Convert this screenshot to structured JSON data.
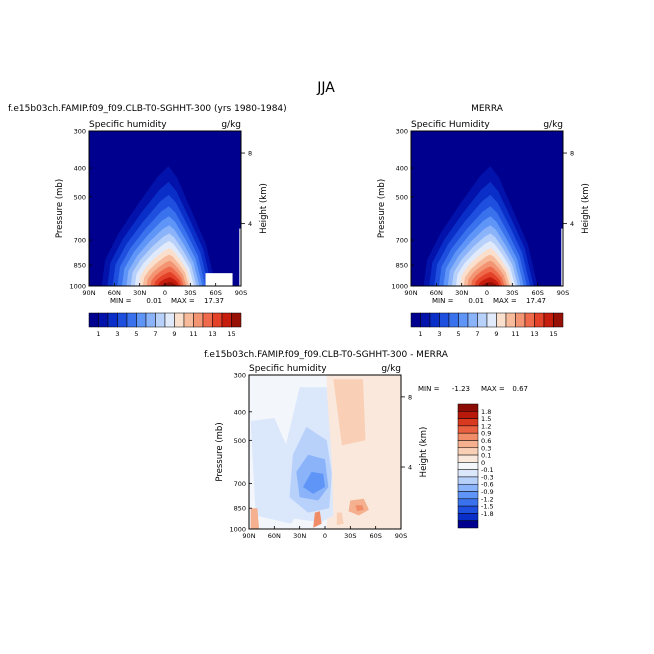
{
  "figure": {
    "title": "JJA"
  },
  "colors": {
    "model_levels": [
      "#00008e",
      "#0212aa",
      "#0a2fc8",
      "#1f4fde",
      "#3a72ee",
      "#5f95f6",
      "#8ab3fa",
      "#b8d1fb",
      "#e0eafb",
      "#fbdfcd",
      "#f7bb9c",
      "#f39473",
      "#ee6a4a",
      "#e34128",
      "#c61d0e",
      "#971005"
    ],
    "diff_levels": [
      "#00008e",
      "#0a2fc8",
      "#1f4fde",
      "#3a72ee",
      "#5f95f6",
      "#8ab3fa",
      "#b8d1fb",
      "#dbe7fb",
      "#f3f6fb",
      "#fbe8dc",
      "#f9d0b6",
      "#f5b08f",
      "#f08c68",
      "#e96140",
      "#d8391f",
      "#b8190b",
      "#8a0c04"
    ]
  },
  "panels": {
    "model": {
      "case_title": "f.e15b03ch.FAMIP.f09_f09.CLB-T0-SGHHT-300 (yrs 1980-1984)",
      "variable": "Specific humidity",
      "units": "g/kg",
      "min_label": "MIN =",
      "min_value": "0.01",
      "max_label": "MAX =",
      "max_value": "17.37"
    },
    "obs": {
      "case_title": "MERRA",
      "variable": "Specific Humidity",
      "units": "g/kg",
      "min_label": "MIN =",
      "min_value": "0.01",
      "max_label": "MAX =",
      "max_value": "17.47"
    },
    "diff": {
      "case_title": "f.e15b03ch.FAMIP.f09_f09.CLB-T0-SGHHT-300 - MERRA",
      "variable": "Specific humidity",
      "units": "g/kg",
      "min_label": "MIN =",
      "min_value": "-1.23",
      "max_label": "MAX =",
      "max_value": "0.67"
    }
  },
  "chart_data": [
    {
      "type": "heatmap",
      "title": "f.e15b03ch.FAMIP.f09_f09.CLB-T0-SGHHT-300 (yrs 1980-1984)",
      "subtitle": "Specific humidity",
      "units": "g/kg",
      "xlabel": "",
      "ylabel": "Pressure (mb)",
      "y2label": "Height (km)",
      "x_ticks": [
        "90N",
        "60N",
        "30N",
        "0",
        "30S",
        "60S",
        "90S"
      ],
      "y_ticks": [
        "300",
        "400",
        "500",
        "700",
        "850",
        "1000"
      ],
      "y2_ticks": [
        "8",
        "4"
      ],
      "colorbar_labels": [
        "1",
        "3",
        "5",
        "7",
        "9",
        "11",
        "13",
        "15"
      ],
      "min": 0.01,
      "max": 17.37
    },
    {
      "type": "heatmap",
      "title": "MERRA",
      "subtitle": "Specific Humidity",
      "units": "g/kg",
      "xlabel": "",
      "ylabel": "Pressure (mb)",
      "y2label": "Height (km)",
      "x_ticks": [
        "90N",
        "60N",
        "30N",
        "0",
        "30S",
        "60S",
        "90S"
      ],
      "y_ticks": [
        "300",
        "400",
        "500",
        "700",
        "850",
        "1000"
      ],
      "y2_ticks": [
        "8",
        "4"
      ],
      "colorbar_labels": [
        "1",
        "3",
        "5",
        "7",
        "9",
        "11",
        "13",
        "15"
      ],
      "min": 0.01,
      "max": 17.47
    },
    {
      "type": "heatmap",
      "title": "f.e15b03ch.FAMIP.f09_f09.CLB-T0-SGHHT-300 - MERRA",
      "subtitle": "Specific humidity",
      "units": "g/kg",
      "xlabel": "",
      "ylabel": "Pressure (mb)",
      "y2label": "Height (km)",
      "x_ticks": [
        "90N",
        "60N",
        "30N",
        "0",
        "30S",
        "60S",
        "90S"
      ],
      "y_ticks": [
        "300",
        "400",
        "500",
        "700",
        "850",
        "1000"
      ],
      "y2_ticks": [
        "8",
        "4"
      ],
      "colorbar_labels": [
        "1.8",
        "1.5",
        "1.2",
        "0.9",
        "0.6",
        "0.3",
        "0.1",
        "0",
        "-0.1",
        "-0.3",
        "-0.6",
        "-0.9",
        "-1.2",
        "-1.5",
        "-1.8"
      ],
      "min": -1.23,
      "max": 0.67
    }
  ]
}
